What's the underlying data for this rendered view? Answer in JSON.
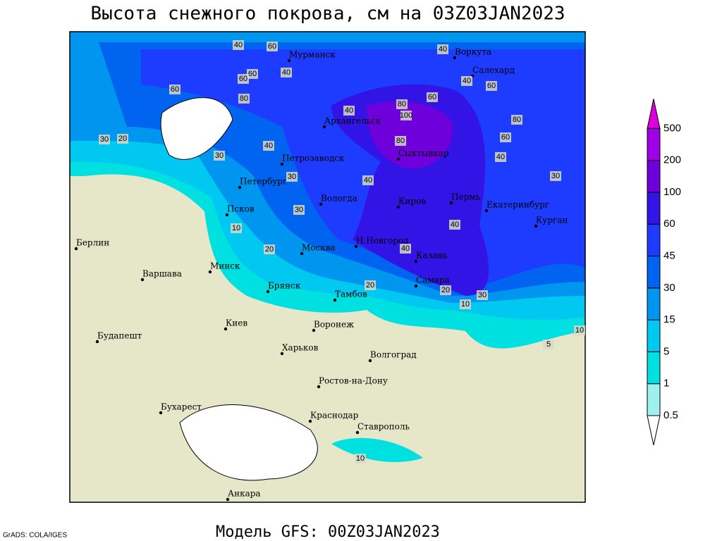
{
  "title": "Высота снежного покрова, см на 03Z03JAN2023",
  "footer": "Модель GFS: 00Z03JAN2023",
  "credit": "GrADS: COLA/IGES",
  "colorbar": {
    "levels": [
      0.5,
      1,
      5,
      15,
      30,
      45,
      60,
      100,
      200,
      500
    ],
    "colors": [
      "#ffffff",
      "#9ff0f0",
      "#00e0e0",
      "#00c8f0",
      "#0096f0",
      "#0064f0",
      "#1e3cff",
      "#3214e6",
      "#6e00dc",
      "#a000e6",
      "#dc00dc"
    ]
  },
  "cities": [
    "Мурманск",
    "Воркута",
    "Салехард",
    "Архангельск",
    "Сыктывкар",
    "Петрозаводск",
    "Петербург",
    "Вологда",
    "Киров",
    "Пермь",
    "Екатеринбург",
    "Курган",
    "Псков",
    "Берлин",
    "Н.Новгород",
    "Москва",
    "Казань",
    "Варшава",
    "Минск",
    "Самара",
    "Брянск",
    "Тамбов",
    "Киев",
    "Воронеж",
    "Харьков",
    "Будапешт",
    "Волгоград",
    "Ростов-на-Дону",
    "Бухарест",
    "Краснодар",
    "Ставрополь",
    "Анкара"
  ],
  "contour_labels": [
    60,
    40,
    60,
    60,
    80,
    60,
    40,
    40,
    60,
    80,
    100,
    80,
    60,
    40,
    80,
    40,
    60,
    40,
    30,
    20,
    30,
    40,
    30,
    40,
    10,
    20,
    40,
    30,
    40,
    30,
    20,
    30,
    10,
    20,
    10,
    5,
    10
  ]
}
